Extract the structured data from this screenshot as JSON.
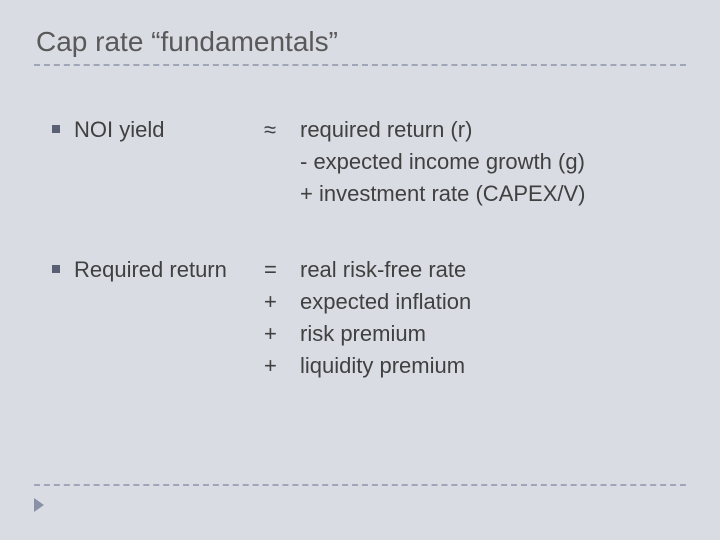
{
  "title": "Cap rate “fundamentals”",
  "colors": {
    "background": "#dadce4",
    "title_color": "#595959",
    "text_color": "#404040",
    "divider_color": "#a0a5b8",
    "bullet_color": "#5a5f73"
  },
  "typography": {
    "title_fontsize_pt": 21,
    "body_fontsize_pt": 17,
    "font_family": "Arial"
  },
  "items": [
    {
      "label": "NOI yield",
      "lines": [
        {
          "op": "≈",
          "text": "required return (r)"
        },
        {
          "op": "",
          "text": "- expected income growth (g)"
        },
        {
          "op": "",
          "text": "+  investment rate (CAPEX/V)"
        }
      ]
    },
    {
      "label": "Required return",
      "lines": [
        {
          "op": "=",
          "text": "real risk-free rate"
        },
        {
          "op": "+",
          "text": "expected inflation"
        },
        {
          "op": "+",
          "text": "risk premium"
        },
        {
          "op": "+",
          "text": "liquidity premium"
        }
      ]
    }
  ]
}
